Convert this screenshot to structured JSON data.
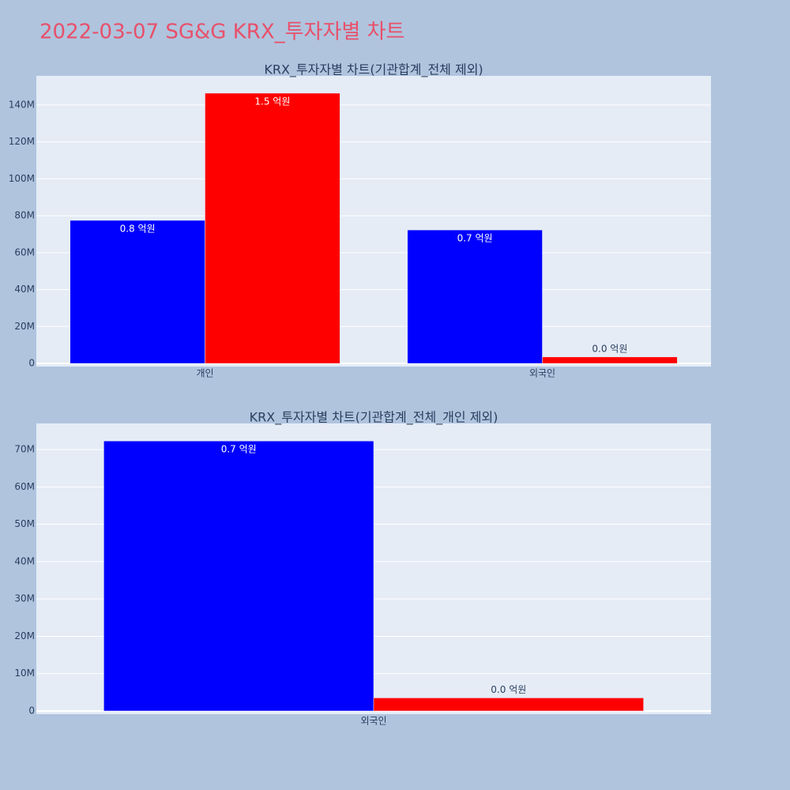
{
  "title": "2022-03-07 SG&G KRX_투자자별 차트",
  "chart_data": [
    {
      "type": "bar",
      "title": "KRX_투자자별 차트(기관합계_전체 제외)",
      "categories": [
        "개인",
        "외국인"
      ],
      "series": [
        {
          "color": "#0000ff",
          "values": [
            77500000,
            72300000
          ],
          "value_labels": [
            "0.8 억원",
            "0.7 억원"
          ]
        },
        {
          "color": "#ff0000",
          "values": [
            146400000,
            3500000
          ],
          "value_labels": [
            "1.5 억원",
            "0.0 억원"
          ]
        }
      ],
      "ylim": [
        -1700000,
        155800000
      ],
      "yticks": [
        0,
        {
          "value": 20000000,
          "label": "20M"
        },
        {
          "value": 40000000,
          "label": "40M"
        },
        {
          "value": 60000000,
          "label": "60M"
        },
        {
          "value": 80000000,
          "label": "80M"
        },
        {
          "value": 100000000,
          "label": "100M"
        },
        {
          "value": 120000000,
          "label": "120M"
        },
        {
          "value": 140000000,
          "label": "140M"
        }
      ],
      "grid": true
    },
    {
      "type": "bar",
      "title": "KRX_투자자별 차트(기관합계_전체_개인 제외)",
      "categories": [
        "외국인"
      ],
      "series": [
        {
          "color": "#0000ff",
          "values": [
            72300000
          ],
          "value_labels": [
            "0.7 억원"
          ]
        },
        {
          "color": "#ff0000",
          "values": [
            3500000
          ],
          "value_labels": [
            "0.0 억원"
          ]
        }
      ],
      "ylim": [
        -850000,
        77000000
      ],
      "yticks": [
        0,
        {
          "value": 10000000,
          "label": "10M"
        },
        {
          "value": 20000000,
          "label": "20M"
        },
        {
          "value": 30000000,
          "label": "30M"
        },
        {
          "value": 40000000,
          "label": "40M"
        },
        {
          "value": 50000000,
          "label": "50M"
        },
        {
          "value": 60000000,
          "label": "60M"
        },
        {
          "value": 70000000,
          "label": "70M"
        }
      ],
      "grid": true
    }
  ]
}
